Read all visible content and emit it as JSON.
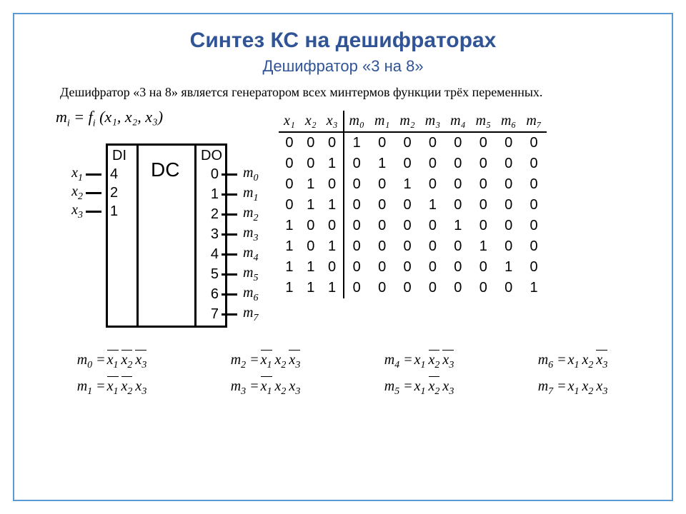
{
  "title": "Синтез КС на дешифраторах",
  "subtitle": "Дешифратор «3 на 8»",
  "description": "Дешифратор «3 на 8» является генератором всех минтермов функции трёх переменных.",
  "equation_main": {
    "lhs": "m",
    "lhs_sub": "i",
    "rhs": "= f",
    "rhs_sub": "i",
    "args": " (x₁, x₂, x₃)"
  },
  "decoder": {
    "hdi": "DI",
    "hdo": "DO",
    "hdc": "DC",
    "inputs": [
      {
        "label": "x",
        "sub": "1",
        "pin": "4"
      },
      {
        "label": "x",
        "sub": "2",
        "pin": "2"
      },
      {
        "label": "x",
        "sub": "3",
        "pin": "1"
      }
    ],
    "outputs": [
      {
        "pin": "0",
        "label": "m",
        "sub": "0"
      },
      {
        "pin": "1",
        "label": "m",
        "sub": "1"
      },
      {
        "pin": "2",
        "label": "m",
        "sub": "2"
      },
      {
        "pin": "3",
        "label": "m",
        "sub": "3"
      },
      {
        "pin": "4",
        "label": "m",
        "sub": "4"
      },
      {
        "pin": "5",
        "label": "m",
        "sub": "5"
      },
      {
        "pin": "6",
        "label": "m",
        "sub": "6"
      },
      {
        "pin": "7",
        "label": "m",
        "sub": "7"
      }
    ]
  },
  "table": {
    "header_inputs": [
      "x₁",
      "x₂",
      "x₃"
    ],
    "header_outputs": [
      "m₀",
      "m₁",
      "m₂",
      "m₃",
      "m₄",
      "m₅",
      "m₆",
      "m₇"
    ],
    "rows": [
      {
        "in": [
          "0",
          "0",
          "0"
        ],
        "out": [
          "1",
          "0",
          "0",
          "0",
          "0",
          "0",
          "0",
          "0"
        ]
      },
      {
        "in": [
          "0",
          "0",
          "1"
        ],
        "out": [
          "0",
          "1",
          "0",
          "0",
          "0",
          "0",
          "0",
          "0"
        ]
      },
      {
        "in": [
          "0",
          "1",
          "0"
        ],
        "out": [
          "0",
          "0",
          "1",
          "0",
          "0",
          "0",
          "0",
          "0"
        ]
      },
      {
        "in": [
          "0",
          "1",
          "1"
        ],
        "out": [
          "0",
          "0",
          "0",
          "1",
          "0",
          "0",
          "0",
          "0"
        ]
      },
      {
        "in": [
          "1",
          "0",
          "0"
        ],
        "out": [
          "0",
          "0",
          "0",
          "0",
          "1",
          "0",
          "0",
          "0"
        ]
      },
      {
        "in": [
          "1",
          "0",
          "1"
        ],
        "out": [
          "0",
          "0",
          "0",
          "0",
          "0",
          "1",
          "0",
          "0"
        ]
      },
      {
        "in": [
          "1",
          "1",
          "0"
        ],
        "out": [
          "0",
          "0",
          "0",
          "0",
          "0",
          "0",
          "1",
          "0"
        ]
      },
      {
        "in": [
          "1",
          "1",
          "1"
        ],
        "out": [
          "0",
          "0",
          "0",
          "0",
          "0",
          "0",
          "0",
          "1"
        ]
      }
    ]
  },
  "minterms_row1": [
    {
      "m": "0",
      "bars": [
        true,
        true,
        true
      ]
    },
    {
      "m": "2",
      "bars": [
        true,
        false,
        true
      ]
    },
    {
      "m": "4",
      "bars": [
        false,
        true,
        true
      ]
    },
    {
      "m": "6",
      "bars": [
        false,
        false,
        true
      ]
    }
  ],
  "minterms_row2": [
    {
      "m": "1",
      "bars": [
        true,
        true,
        false
      ]
    },
    {
      "m": "3",
      "bars": [
        true,
        false,
        false
      ]
    },
    {
      "m": "5",
      "bars": [
        false,
        true,
        false
      ]
    },
    {
      "m": "7",
      "bars": [
        false,
        false,
        false
      ]
    }
  ],
  "colors": {
    "frame": "#5b9bd5",
    "title": "#305496",
    "text": "#000000"
  }
}
